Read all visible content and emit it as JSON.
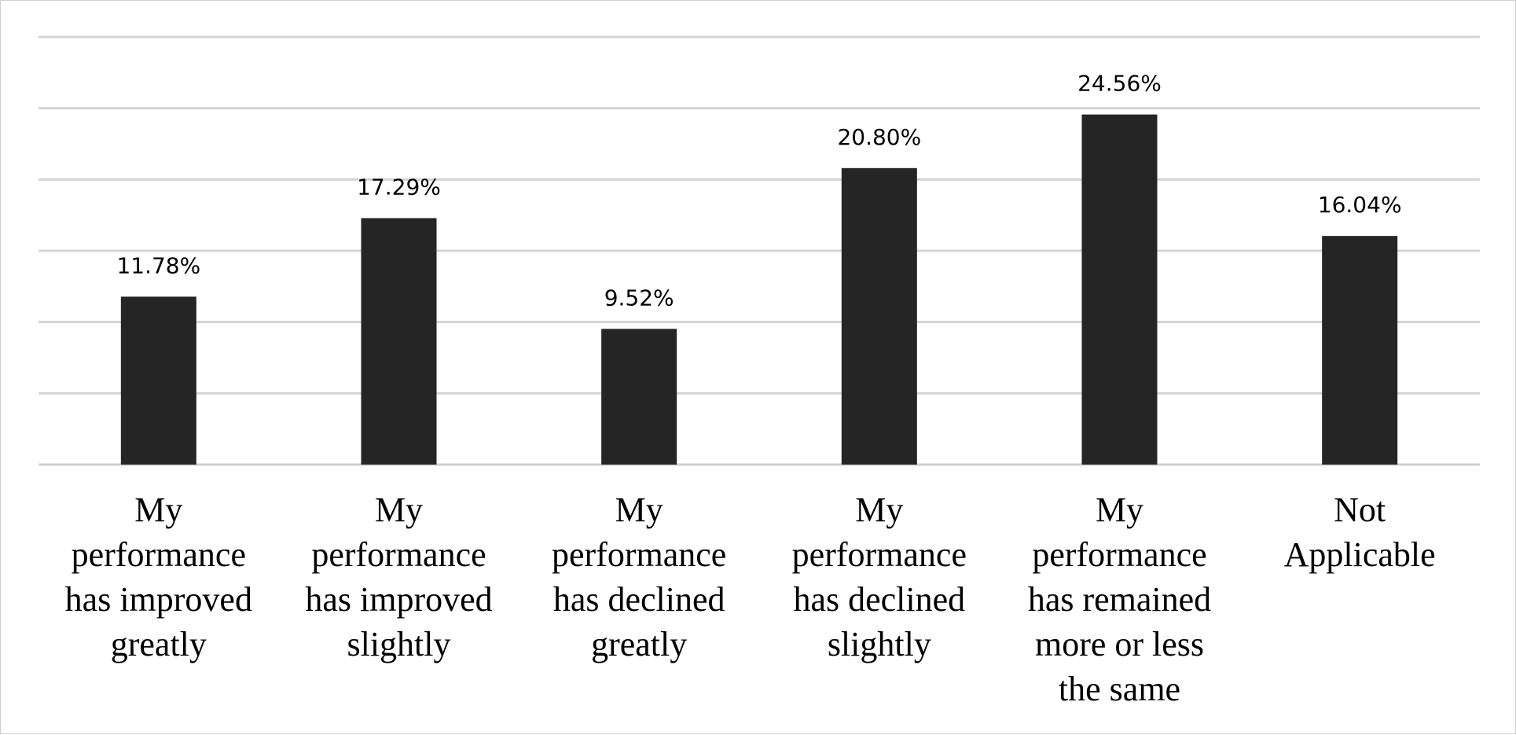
{
  "chart_data": {
    "type": "bar",
    "title": "",
    "xlabel": "",
    "ylabel": "",
    "ylim": [
      0,
      30
    ],
    "grid": true,
    "legend": "none",
    "colors": {
      "bar": "#252525",
      "grid": "#d4d4d4"
    },
    "categories": [
      "My performance has improved greatly",
      "My performance has improved slightly",
      "My performance has declined greatly",
      "My performance has declined slightly",
      "My performance has remained more or less the same",
      "Not Applicable"
    ],
    "category_lines": [
      [
        "My",
        "performance",
        "has improved",
        "greatly"
      ],
      [
        "My",
        "performance",
        "has improved",
        "slightly"
      ],
      [
        "My",
        "performance",
        "has declined",
        "greatly"
      ],
      [
        "My",
        "performance",
        "has declined",
        "slightly"
      ],
      [
        "My",
        "performance",
        "has remained",
        "more or less",
        "the same"
      ],
      [
        "Not",
        "Applicable"
      ]
    ],
    "values": [
      11.78,
      17.29,
      9.52,
      20.8,
      24.56,
      16.04
    ],
    "data_labels": [
      "11.78%",
      "17.29%",
      "9.52%",
      "20.80%",
      "24.56%",
      "16.04%"
    ]
  }
}
